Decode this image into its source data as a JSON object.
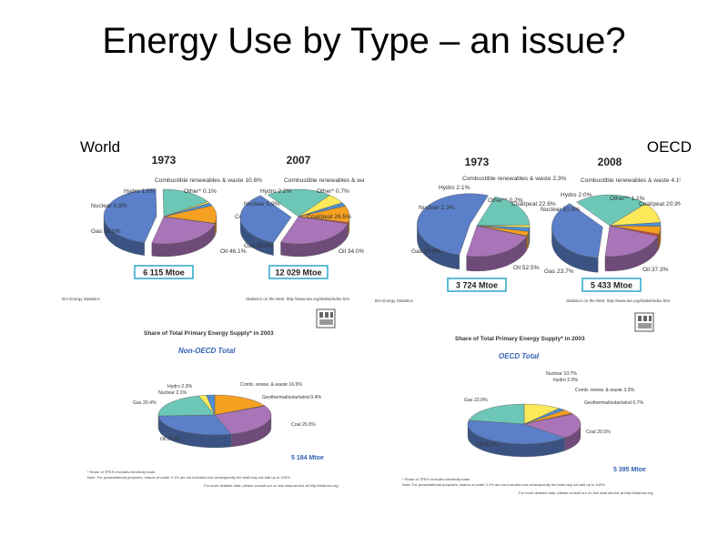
{
  "slide": {
    "title": "Energy Use by Type – an issue?",
    "world_label": "World",
    "oecd_label": "OECD"
  },
  "colors": {
    "oil": "#5b7fc8",
    "coal": "#a974b8",
    "gas": "#6dc7b7",
    "nuclear": "#fde85a",
    "hydro": "#4f8fd0",
    "combustible": "#f5a020",
    "other": "#d24a3a",
    "box": "#2aa7c8"
  },
  "top_panels": [
    {
      "source_left": "IEA Energy Statistics",
      "source_right": "Statistics on the Web: http://www.iea.org/statist/index.htm",
      "totals": [
        "6 115 Mtoe",
        "12 029 Mtoe"
      ]
    },
    {
      "source_left": "IEA Energy Statistics",
      "source_right": "Statistics on the Web: http://www.iea.org/statist/index.htm",
      "totals": [
        "3 724 Mtoe",
        "5 433 Mtoe"
      ]
    }
  ],
  "bottom_panels": [
    {
      "title": "Share of Total Primary Energy Supply* in 2003",
      "subtitle": "Non-OECD Total",
      "total": "5 184 Mtoe",
      "note1": "* Share of TPES excludes electricity trade.",
      "note2": "Note: For presentational purposes, shares of under 0.1% are not included and consequently the total may not add up to 100%.",
      "note3": "For more detailed data, please consult our on-line data service at http://data.iea.org."
    },
    {
      "title": "Share of Total Primary Energy Supply* in 2003",
      "subtitle": "OECD Total",
      "total": "5 395 Mtoe",
      "note1": "* Share of TPES excludes electricity trade.",
      "note2": "Note: For presentational purposes, shares of under 0.1% are not included and consequently the total may not add up to 100%.",
      "note3": "For more detailed data, please consult our on-line data service at http://data.iea.org."
    }
  ],
  "chart_data": [
    {
      "type": "pie",
      "title": "1973",
      "region": "World",
      "labels": [
        "Coal/peat",
        "Oil",
        "Gas",
        "Nuclear",
        "Hydro",
        "Combustible renewables & waste",
        "Other*"
      ],
      "values": [
        24.5,
        46.1,
        16.0,
        0.9,
        1.8,
        10.6,
        0.1
      ],
      "value_labels": [
        "24.5%",
        "46.1%",
        "16.0%",
        "0.9%",
        "1.8%",
        "10.6%",
        "0.1%"
      ],
      "total": "6 115 Mtoe"
    },
    {
      "type": "pie",
      "title": "2007",
      "region": "World",
      "labels": [
        "Coal/peat",
        "Oil",
        "Gas",
        "Nuclear",
        "Hydro",
        "Combustible renewables & waste",
        "Other*"
      ],
      "values": [
        26.5,
        34.0,
        20.9,
        5.9,
        2.2,
        9.8,
        0.7
      ],
      "value_labels": [
        "26.5%",
        "34.0%",
        "20.9%",
        "5.9%",
        "2.2%",
        "9.8%",
        "0.7%"
      ],
      "total": "12 029 Mtoe"
    },
    {
      "type": "pie",
      "title": "1973",
      "region": "OECD",
      "labels": [
        "Coal/peat",
        "Oil",
        "Gas",
        "Nuclear",
        "Hydro",
        "Combustible renewables & waste",
        "Other**"
      ],
      "values": [
        22.6,
        52.5,
        19.0,
        1.3,
        2.1,
        2.3,
        0.2
      ],
      "value_labels": [
        "22.6%",
        "52.5%",
        "19.0%",
        "1.3%",
        "2.1%",
        "2.3%",
        "0.2%"
      ],
      "total": "3 724 Mtoe"
    },
    {
      "type": "pie",
      "title": "2008",
      "region": "OECD",
      "labels": [
        "Coal/peat",
        "Oil",
        "Gas",
        "Nuclear",
        "Hydro",
        "Combustible renewables & waste",
        "Other**"
      ],
      "values": [
        20.9,
        37.3,
        23.7,
        10.9,
        2.0,
        4.1,
        1.1
      ],
      "value_labels": [
        "20.9%",
        "37.3%",
        "23.7%",
        "10.9%",
        "2.0%",
        "4.1%",
        "1.1%"
      ],
      "total": "5 433 Mtoe"
    },
    {
      "type": "pie",
      "title": "Non-OECD Total",
      "labels": [
        "Comb. renew. & waste",
        "Geothermal/solar/wind",
        "Coal",
        "Oil",
        "Gas",
        "Nuclear",
        "Hydro"
      ],
      "values": [
        16.6,
        0.4,
        26.5,
        27.8,
        20.4,
        2.1,
        2.3
      ],
      "value_labels": [
        "16.6%",
        "0.4%",
        "26.5%",
        "27.8%",
        "20.4%",
        "2.1%",
        "2.3%"
      ],
      "total": "5 184 Mtoe"
    },
    {
      "type": "pie",
      "title": "OECD Total",
      "labels": [
        "Nuclear",
        "Hydro",
        "Comb. renew. & waste",
        "Geothermal/solar/wind",
        "Coal",
        "Oil",
        "Gas"
      ],
      "values": [
        10.7,
        2.0,
        3.3,
        0.7,
        20.5,
        40.7,
        22.0
      ],
      "value_labels": [
        "10.7%",
        "2.0%",
        "3.3%",
        "0.7%",
        "20.5%",
        "40.7%",
        "22.0%"
      ],
      "total": "5 395 Mtoe"
    }
  ]
}
